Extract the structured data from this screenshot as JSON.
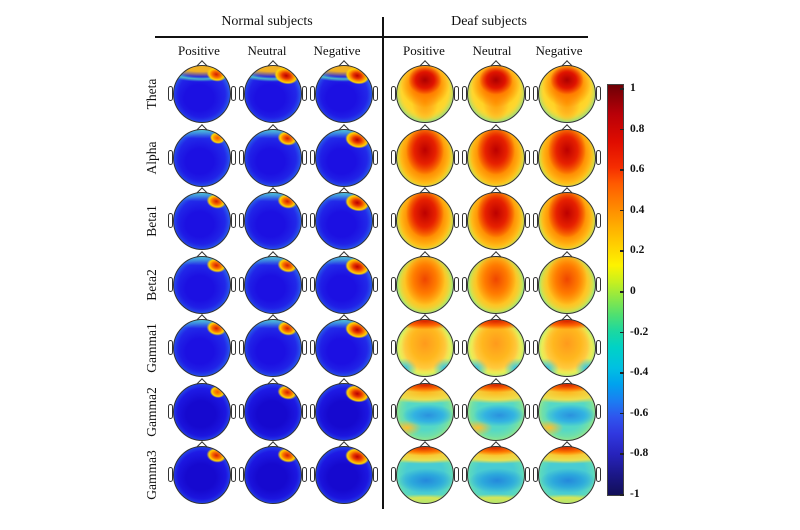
{
  "figure": {
    "background": "#ffffff"
  },
  "chart_data": {
    "type": "heatmap",
    "subtype": "eeg-scalp-topography-grid",
    "title": "",
    "groups": [
      "Normal subjects",
      "Deaf subjects"
    ],
    "conditions": [
      "Positive",
      "Neutral",
      "Negative"
    ],
    "bands": [
      "Theta",
      "Alpha",
      "Beta1",
      "Beta2",
      "Gamma1",
      "Gamma2",
      "Gamma3"
    ],
    "colorbar": {
      "min": -1,
      "max": 1,
      "tick_step": 0.2,
      "ticks": [
        "1",
        "0.8",
        "0.6",
        "0.4",
        "0.2",
        "0",
        "-0.2",
        "-0.4",
        "-0.6",
        "-0.8",
        "-1"
      ],
      "colormap": "jet",
      "colors": {
        "max": "#6e0005",
        "high": "#e82200",
        "warm": "#ff9800",
        "mid": "#7ce846",
        "cool": "#00c0e2",
        "low": "#2f55ee",
        "min": "#120f58"
      }
    },
    "rows": [
      {
        "band": "Theta",
        "normal": {
          "pattern": "n-theta",
          "hotspots": [
            2,
            3,
            3
          ],
          "regions": {
            "frontal": 0.55,
            "frontal_right": 0.9,
            "central": -0.8,
            "posterior": -0.7,
            "rim": -0.45
          }
        },
        "deaf": {
          "pattern": "d-theta",
          "regions": {
            "frontal_central": 0.95,
            "central": 0.65,
            "temporal": -0.35,
            "occipital": 0.3
          }
        }
      },
      {
        "band": "Alpha",
        "normal": {
          "pattern": "n-cool",
          "hotspots": [
            1,
            2,
            3
          ],
          "regions": {
            "frontal_right": 0.85,
            "central": -0.85,
            "rim": -0.5
          }
        },
        "deaf": {
          "pattern": "d-alpha",
          "regions": {
            "frontal_central": 0.95,
            "temporal": -0.4,
            "occipital": 0.3
          }
        }
      },
      {
        "band": "Beta1",
        "normal": {
          "pattern": "n-cool",
          "hotspots": [
            2,
            2,
            3
          ],
          "regions": {
            "frontal_right": 0.85,
            "central": -0.85,
            "rim": -0.5
          }
        },
        "deaf": {
          "pattern": "d-alpha",
          "regions": {
            "central": 0.9,
            "temporal": -0.35,
            "occipital": 0.25
          }
        }
      },
      {
        "band": "Beta2",
        "normal": {
          "pattern": "n-cool",
          "hotspots": [
            2,
            2,
            3
          ],
          "regions": {
            "frontal_right": 0.8,
            "central": -0.9,
            "rim": -0.5
          }
        },
        "deaf": {
          "pattern": "d-beta2",
          "regions": {
            "central": 0.75,
            "temporal": -0.3,
            "occipital": 0.3
          }
        }
      },
      {
        "band": "Gamma1",
        "normal": {
          "pattern": "n-cool",
          "hotspots": [
            2,
            2,
            3
          ],
          "regions": {
            "frontal_right": 0.85,
            "central": -0.9,
            "rim": -0.5
          }
        },
        "deaf": {
          "pattern": "d-gamma1",
          "regions": {
            "frontal": 0.8,
            "central": 0.5,
            "posterior_lateral": -0.35
          }
        }
      },
      {
        "band": "Gamma2",
        "normal": {
          "pattern": "n-deep",
          "hotspots": [
            1,
            2,
            3
          ],
          "regions": {
            "frontal_right": 0.7,
            "central": -0.95,
            "rim": -0.6
          }
        },
        "deaf": {
          "pattern": "d-gamma2",
          "regions": {
            "frontal": 0.75,
            "central": -0.2,
            "rim": 0.3
          }
        }
      },
      {
        "band": "Gamma3",
        "normal": {
          "pattern": "n-deep",
          "hotspots": [
            2,
            2,
            3
          ],
          "regions": {
            "frontal_right": 0.75,
            "central": -0.95,
            "rim": -0.6
          }
        },
        "deaf": {
          "pattern": "d-gamma3",
          "regions": {
            "frontal": 0.7,
            "central": -0.25,
            "rim": 0.25
          }
        }
      }
    ]
  }
}
